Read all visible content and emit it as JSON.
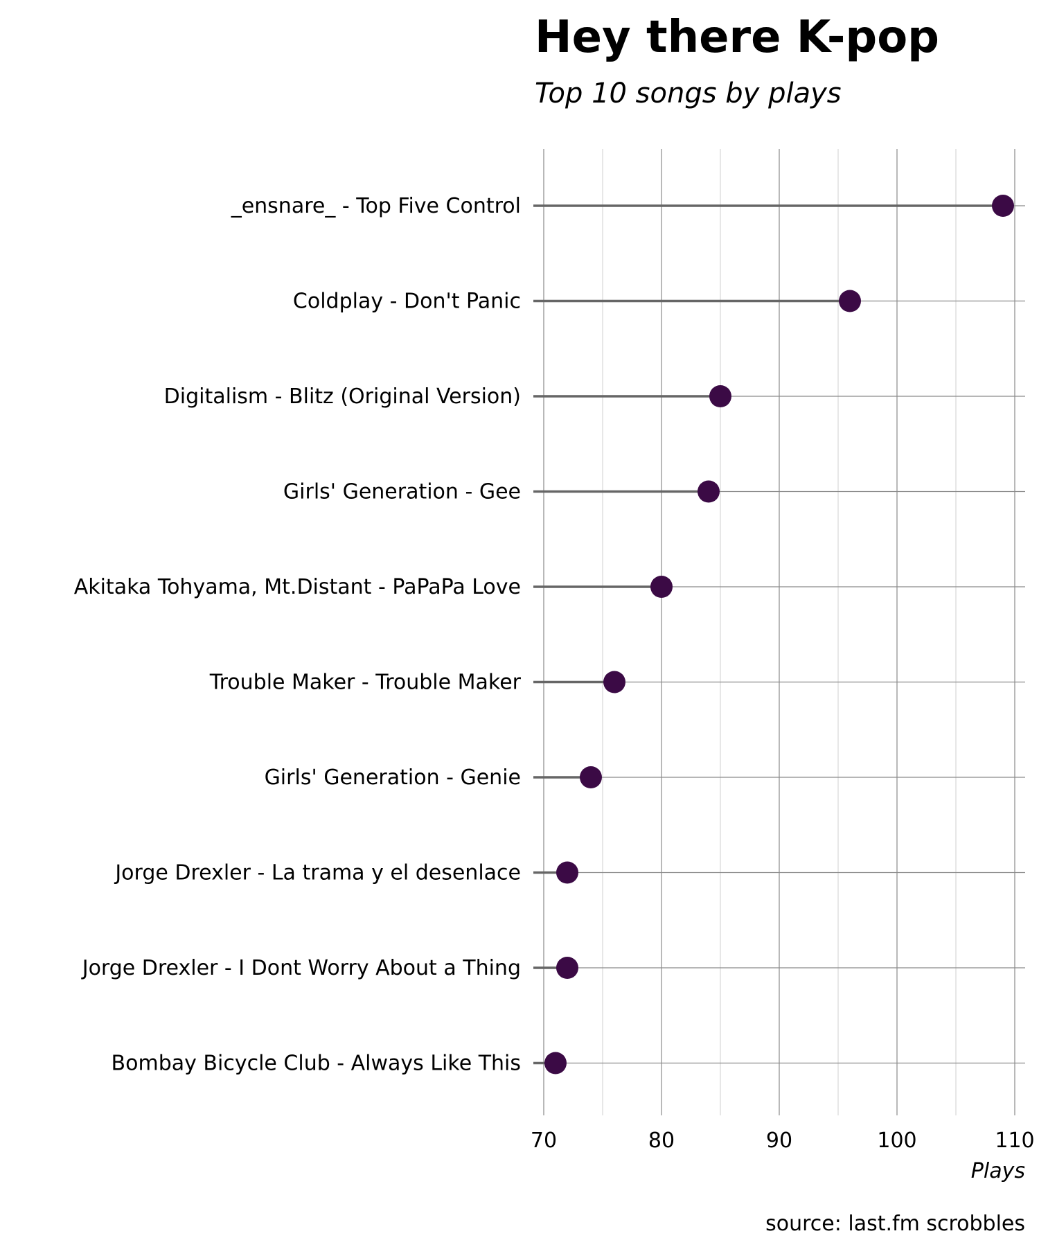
{
  "chart_data": {
    "type": "lollipop",
    "title": "Hey there K-pop",
    "subtitle": "Top 10 songs by plays",
    "xlabel": "Plays",
    "caption": "source: last.fm scrobbles",
    "xlim": [
      70,
      110
    ],
    "x_ticks": [
      70,
      80,
      90,
      100,
      110
    ],
    "x_minor_ticks": [
      75,
      85,
      95,
      105
    ],
    "grid": true,
    "point_color": "#3b0a45",
    "stem_color": "#666666",
    "categories": [
      "_ensnare_ - Top Five Control",
      "Coldplay - Don't Panic",
      "Digitalism - Blitz (Original Version)",
      "Girls' Generation - Gee",
      "Akitaka Tohyama, Mt.Distant - PaPaPa Love",
      "Trouble Maker - Trouble Maker",
      "Girls' Generation - Genie",
      "Jorge Drexler - La trama y el desenlace",
      "Jorge Drexler - I Dont Worry About a Thing",
      "Bombay Bicycle Club - Always Like This"
    ],
    "values": [
      109,
      96,
      85,
      84,
      80,
      76,
      74,
      72,
      72,
      71
    ]
  }
}
